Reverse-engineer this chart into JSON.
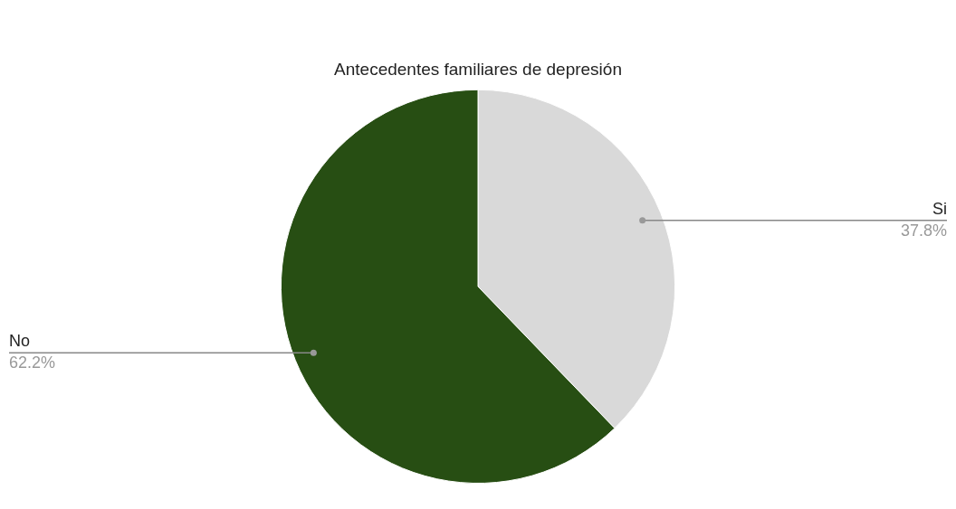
{
  "chart_data": {
    "type": "pie",
    "title": "Antecedentes familiares de depresión",
    "categories": [
      "Si",
      "No"
    ],
    "values": [
      37.8,
      62.2
    ],
    "colors": [
      "#d9d9d9",
      "#274e13"
    ],
    "value_labels": [
      "37.8%",
      "62.2%"
    ],
    "legend": false
  }
}
